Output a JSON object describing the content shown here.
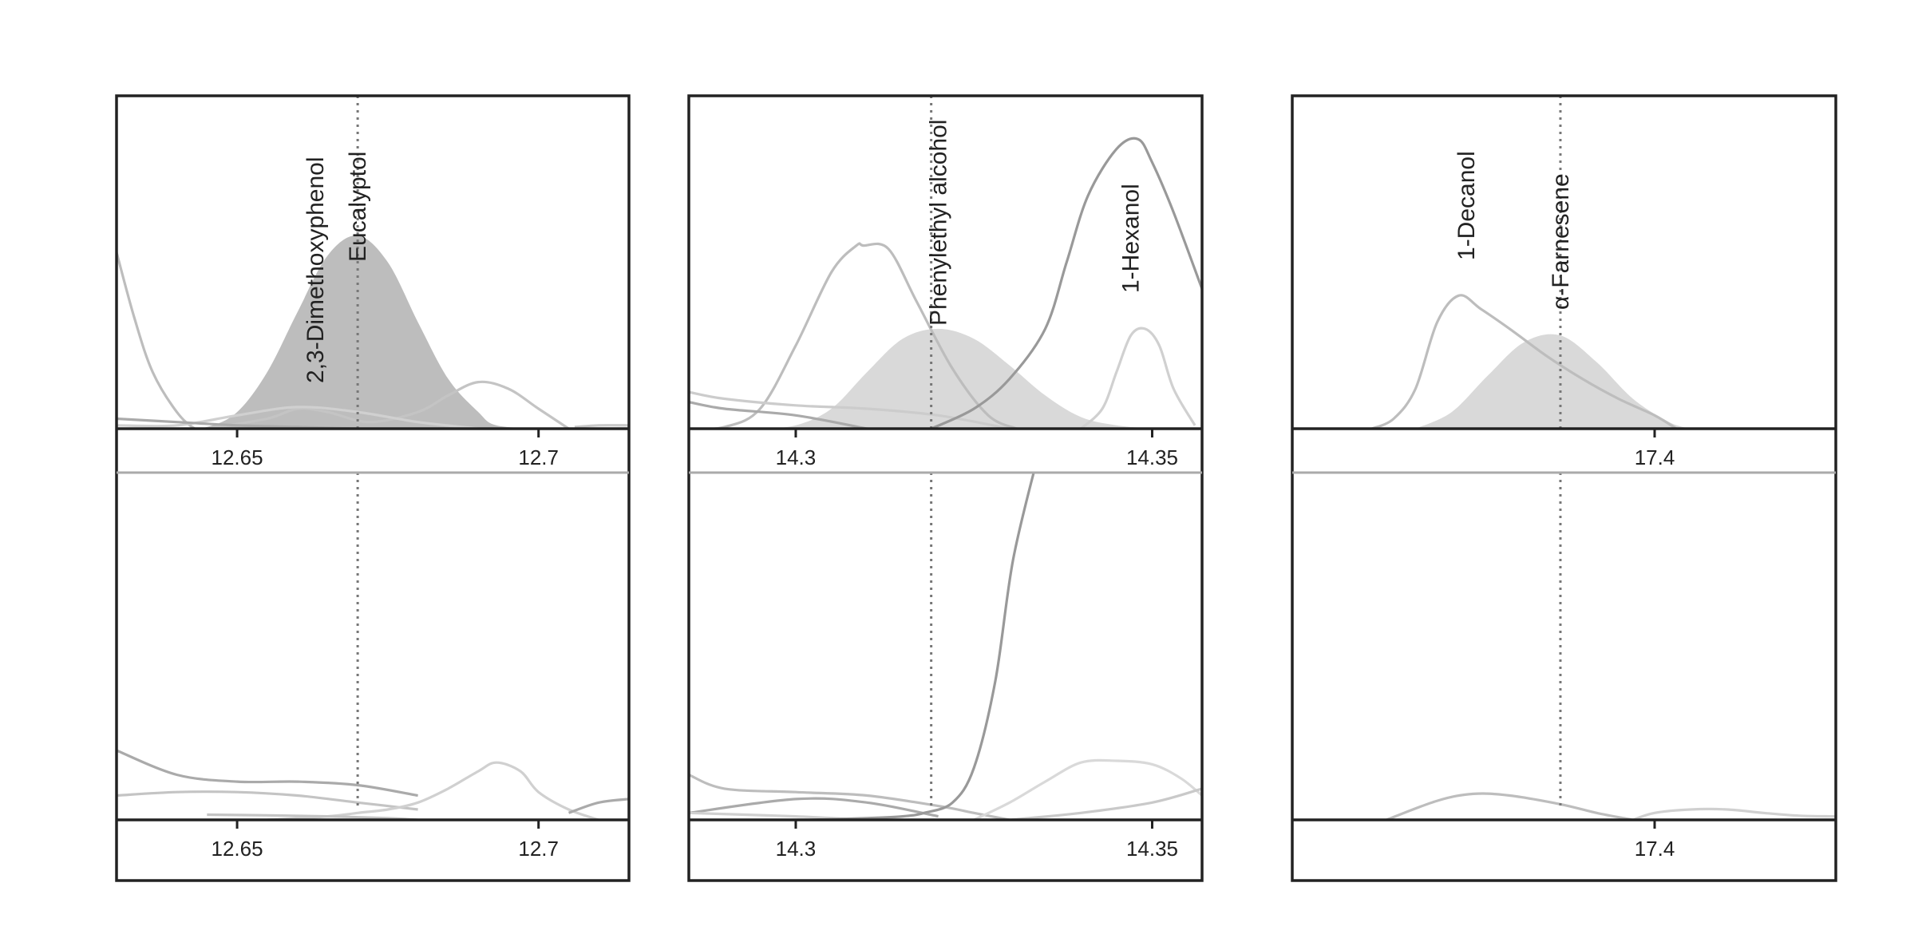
{
  "chart_data": [
    {
      "type": "line",
      "title": "",
      "xlim": [
        12.63,
        12.715
      ],
      "xticks": [
        12.65,
        12.7
      ],
      "xtick_labels": [
        "12.65",
        "12.7"
      ],
      "annotations": [
        {
          "text": "2,3-Dimethoxyphenol",
          "x": 12.663
        },
        {
          "text": "Eucalyptol",
          "x": 12.67
        }
      ],
      "marker_x": 12.67,
      "top": {
        "ylim": [
          0,
          1
        ],
        "filled_peak": {
          "x": [
            12.63,
            12.64,
            12.645,
            12.65,
            12.655,
            12.66,
            12.665,
            12.67,
            12.675,
            12.68,
            12.685,
            12.69,
            12.693,
            12.7
          ],
          "y": [
            0,
            0,
            0.005,
            0.05,
            0.17,
            0.35,
            0.52,
            0.58,
            0.5,
            0.32,
            0.15,
            0.05,
            0.01,
            0
          ],
          "color": "#bdbdbd"
        },
        "series": [
          {
            "color": "#bdbdbd",
            "x": [
              12.63,
              12.633,
              12.636,
              12.64,
              12.643,
              12.645,
              12.65
            ],
            "y": [
              0.53,
              0.33,
              0.17,
              0.05,
              0,
              0,
              0
            ]
          },
          {
            "color": "#c4c4c4",
            "x": [
              12.645,
              12.655,
              12.66,
              12.665,
              12.672,
              12.68,
              12.685,
              12.69,
              12.695,
              12.7,
              12.705
            ],
            "y": [
              0,
              0.03,
              0.06,
              0.05,
              0.02,
              0.05,
              0.1,
              0.14,
              0.12,
              0.06,
              0
            ]
          },
          {
            "color": "#d0d0d0",
            "x": [
              12.63,
              12.64,
              12.65,
              12.66,
              12.67,
              12.68,
              12.69
            ],
            "y": [
              0.01,
              0.01,
              0.04,
              0.065,
              0.05,
              0.02,
              0
            ]
          },
          {
            "color": "#aaaaaa",
            "x": [
              12.63,
              12.64,
              12.65,
              12.66,
              12.67
            ],
            "y": [
              0.03,
              0.02,
              0.01,
              0.005,
              0
            ]
          },
          {
            "color": "#c9c9c9",
            "x": [
              12.706,
              12.71,
              12.715
            ],
            "y": [
              0.005,
              0.01,
              0.01
            ]
          }
        ]
      },
      "bottom": {
        "ylim": [
          0,
          1
        ],
        "series": [
          {
            "color": "#aaaaaa",
            "x": [
              12.63,
              12.64,
              12.65,
              12.66,
              12.67,
              12.68
            ],
            "y": [
              0.2,
              0.13,
              0.11,
              0.11,
              0.1,
              0.07
            ]
          },
          {
            "color": "#c4c4c4",
            "x": [
              12.63,
              12.64,
              12.65,
              12.66,
              12.67,
              12.68
            ],
            "y": [
              0.07,
              0.08,
              0.08,
              0.07,
              0.05,
              0.03
            ]
          },
          {
            "color": "#d0d0d0",
            "x": [
              12.655,
              12.665,
              12.67,
              12.675,
              12.68,
              12.685,
              12.69,
              12.693,
              12.697,
              12.7,
              12.705,
              12.71
            ],
            "y": [
              0,
              0.01,
              0.02,
              0.03,
              0.05,
              0.09,
              0.14,
              0.165,
              0.14,
              0.08,
              0.03,
              0
            ]
          },
          {
            "color": "#c4c4c4",
            "x": [
              12.645,
              12.655,
              12.665,
              12.675,
              12.68
            ],
            "y": [
              0.015,
              0.013,
              0.01,
              0.005,
              0
            ]
          },
          {
            "color": "#aaaaaa",
            "x": [
              12.705,
              12.71,
              12.715
            ],
            "y": [
              0.02,
              0.05,
              0.06
            ]
          }
        ]
      }
    },
    {
      "type": "line",
      "title": "",
      "xlim": [
        14.285,
        14.357
      ],
      "xticks": [
        14.3,
        14.35
      ],
      "xtick_labels": [
        "14.3",
        "14.35"
      ],
      "annotations": [
        {
          "text": "Phenylethyl alcohol",
          "x": 14.32
        },
        {
          "text": "1-Hexanol",
          "x": 14.347
        }
      ],
      "marker_x": 14.319,
      "top": {
        "ylim": [
          0,
          1
        ],
        "filled_peak": {
          "x": [
            14.295,
            14.3,
            14.305,
            14.31,
            14.315,
            14.32,
            14.325,
            14.33,
            14.335,
            14.34,
            14.345,
            14.35
          ],
          "y": [
            0,
            0.01,
            0.06,
            0.17,
            0.27,
            0.3,
            0.27,
            0.19,
            0.1,
            0.035,
            0.01,
            0
          ],
          "color": "#d9d9d9"
        },
        "series": [
          {
            "color": "#bdbdbd",
            "x": [
              14.285,
              14.29,
              14.295,
              14.3,
              14.305,
              14.3085,
              14.3095,
              14.313,
              14.317,
              14.322,
              14.327,
              14.331
            ],
            "y": [
              0,
              0.005,
              0.06,
              0.25,
              0.47,
              0.55,
              0.55,
              0.54,
              0.38,
              0.18,
              0.04,
              0
            ]
          },
          {
            "color": "#cccccc",
            "x": [
              14.285,
              14.29,
              14.3,
              14.31,
              14.32,
              14.33
            ],
            "y": [
              0.11,
              0.09,
              0.07,
              0.06,
              0.04,
              0
            ]
          },
          {
            "color": "#aaaaaa",
            "x": [
              14.285,
              14.29,
              14.3,
              14.31
            ],
            "y": [
              0.08,
              0.06,
              0.04,
              0
            ]
          },
          {
            "color": "#999999",
            "x": [
              14.319,
              14.325,
              14.33,
              14.335,
              14.338,
              14.341,
              14.345,
              14.348,
              14.35,
              14.353,
              14.357
            ],
            "y": [
              0,
              0.06,
              0.15,
              0.3,
              0.5,
              0.7,
              0.84,
              0.87,
              0.8,
              0.65,
              0.42
            ]
          },
          {
            "color": "#d0d0d0",
            "x": [
              14.34,
              14.343,
              14.345,
              14.347,
              14.349,
              14.351,
              14.353,
              14.356
            ],
            "y": [
              0,
              0.06,
              0.17,
              0.28,
              0.3,
              0.25,
              0.12,
              0.01
            ]
          }
        ]
      },
      "bottom": {
        "ylim": [
          0,
          1
        ],
        "series": [
          {
            "color": "#bdbdbd",
            "x": [
              14.285,
              14.29,
              14.3,
              14.31,
              14.32,
              14.325,
              14.33
            ],
            "y": [
              0.13,
              0.09,
              0.08,
              0.07,
              0.04,
              0.02,
              0
            ]
          },
          {
            "color": "#aaaaaa",
            "x": [
              14.285,
              14.3,
              14.31,
              14.32
            ],
            "y": [
              0.02,
              0.06,
              0.05,
              0.01
            ]
          },
          {
            "color": "#d0d0d0",
            "x": [
              14.285,
              14.3,
              14.31
            ],
            "y": [
              0.02,
              0.01,
              0
            ]
          },
          {
            "color": "#999999",
            "x": [
              14.302,
              14.31,
              14.315,
              14.318,
              14.322,
              14.325,
              14.328,
              14.3305,
              14.334
            ],
            "y": [
              0,
              0.005,
              0.01,
              0.02,
              0.05,
              0.15,
              0.4,
              0.75,
              1.05
            ]
          },
          {
            "color": "#d9d9d9",
            "x": [
              14.325,
              14.33,
              14.335,
              14.34,
              14.345,
              14.35,
              14.354,
              14.357
            ],
            "y": [
              0,
              0.05,
              0.11,
              0.165,
              0.17,
              0.16,
              0.12,
              0.07
            ]
          },
          {
            "color": "#c9c9c9",
            "x": [
              14.33,
              14.34,
              14.35,
              14.357
            ],
            "y": [
              0,
              0.02,
              0.05,
              0.09
            ]
          }
        ]
      }
    },
    {
      "type": "line",
      "title": "",
      "xlim": [
        17.35,
        17.425
      ],
      "xticks": [
        17.4
      ],
      "xtick_labels": [
        "17.4"
      ],
      "annotations": [
        {
          "text": "1-Decanol",
          "x": 17.374
        },
        {
          "text": "α-Farnesene",
          "x": 17.387
        }
      ],
      "marker_x": 17.387,
      "top": {
        "ylim": [
          0,
          1
        ],
        "filled_peak": {
          "x": [
            17.367,
            17.372,
            17.377,
            17.382,
            17.387,
            17.392,
            17.397,
            17.402,
            17.405
          ],
          "y": [
            0,
            0.05,
            0.16,
            0.26,
            0.28,
            0.2,
            0.09,
            0.02,
            0
          ],
          "color": "#d9d9d9"
        },
        "series": [
          {
            "color": "#bdbdbd",
            "x": [
              17.361,
              17.364,
              17.367,
              17.37,
              17.373,
              17.376,
              17.38,
              17.385,
              17.39,
              17.395,
              17.4,
              17.403
            ],
            "y": [
              0,
              0.03,
              0.12,
              0.32,
              0.4,
              0.36,
              0.3,
              0.22,
              0.15,
              0.09,
              0.04,
              0
            ]
          }
        ]
      },
      "bottom": {
        "ylim": [
          0,
          1
        ],
        "series": [
          {
            "color": "#bdbdbd",
            "x": [
              17.363,
              17.37,
              17.375,
              17.38,
              17.387,
              17.392,
              17.397
            ],
            "y": [
              0,
              0.055,
              0.075,
              0.07,
              0.045,
              0.02,
              0
            ]
          },
          {
            "color": "#d0d0d0",
            "x": [
              17.397,
              17.4,
              17.405,
              17.41,
              17.415,
              17.42,
              17.425
            ],
            "y": [
              0,
              0.02,
              0.03,
              0.03,
              0.02,
              0.012,
              0.01
            ]
          }
        ]
      }
    }
  ],
  "colors": {
    "axis": "#222222",
    "separator": "#aaaaaa",
    "marker": "#777777"
  }
}
